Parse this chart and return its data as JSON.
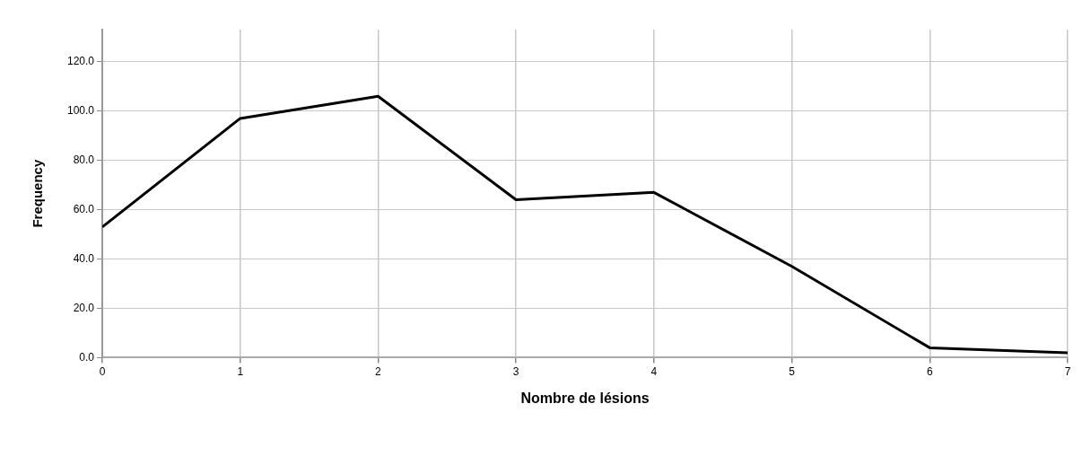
{
  "chart_data": {
    "type": "line",
    "xlabel": "Nombre de lésions",
    "ylabel": "Frequency",
    "x": [
      0,
      1,
      2,
      3,
      4,
      5,
      6,
      7
    ],
    "series": [
      {
        "color": "#000000",
        "values": [
          53,
          97,
          106,
          64,
          67,
          37,
          4,
          2
        ]
      }
    ],
    "xlim": [
      0,
      7
    ],
    "xticks": [
      0,
      1,
      2,
      3,
      4,
      5,
      6,
      7
    ],
    "ylim": [
      0,
      133
    ],
    "yticks": [
      {
        "value": 0,
        "label": "0.0"
      },
      {
        "value": 20,
        "label": "20.0"
      },
      {
        "value": 40,
        "label": "40.0"
      },
      {
        "value": 60,
        "label": "60.0"
      },
      {
        "value": 80,
        "label": "80.0"
      },
      {
        "value": 100,
        "label": "100.0"
      },
      {
        "value": 120,
        "label": "120.0"
      }
    ],
    "grid": true,
    "legend": false,
    "marker": "none",
    "line_style": "solid"
  }
}
